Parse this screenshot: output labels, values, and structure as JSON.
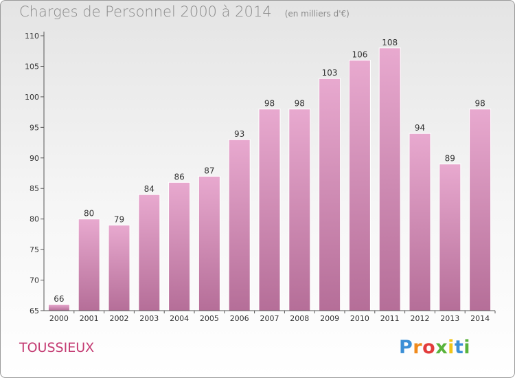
{
  "header": {
    "title": "Charges de Personnel 2000 à 2014",
    "subtitle": "(en milliers d'€)"
  },
  "footer": {
    "commune": "TOUSSIEUX",
    "logo_text": "Proxiti"
  },
  "colors": {
    "bar_top": "#e8a9cf",
    "bar_bottom": "#b56e98",
    "commune": "#c43c73",
    "axis_text": "#333333"
  },
  "chart_data": {
    "type": "bar",
    "title": "Charges de Personnel 2000 à 2014",
    "subtitle": "(en milliers d'€)",
    "categories": [
      "2000",
      "2001",
      "2002",
      "2003",
      "2004",
      "2005",
      "2006",
      "2007",
      "2008",
      "2009",
      "2010",
      "2011",
      "2012",
      "2013",
      "2014"
    ],
    "values": [
      66,
      80,
      79,
      84,
      86,
      87,
      93,
      98,
      98,
      103,
      106,
      108,
      94,
      89,
      98
    ],
    "ylim": [
      65,
      110
    ],
    "yticks": [
      65,
      70,
      75,
      80,
      85,
      90,
      95,
      100,
      105,
      110
    ],
    "grid": false,
    "show_data_labels": true
  }
}
